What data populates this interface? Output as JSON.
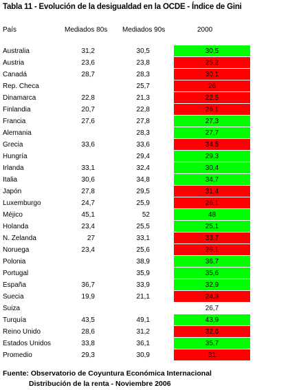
{
  "title": "Tabla 11 - Evolución de la desigualdad en la OCDE - Índice de Gini",
  "columns": {
    "pais": "País",
    "m80": "Mediados 80s",
    "m90": "Mediados 90s",
    "y2000": "2000"
  },
  "colors": {
    "green": "#00ff00",
    "red": "#ff0000",
    "none": "#ffffff"
  },
  "rows": [
    {
      "pais": "Australia",
      "m80": "31,2",
      "m90": "30,5",
      "y2000": "30,5",
      "color": "green"
    },
    {
      "pais": "Austria",
      "m80": "23,6",
      "m90": "23,8",
      "y2000": "25,2",
      "color": "red"
    },
    {
      "pais": "Canadá",
      "m80": "28,7",
      "m90": "28,3",
      "y2000": "30,1",
      "color": "red"
    },
    {
      "pais": "Rep. Checa",
      "m80": "",
      "m90": "25,7",
      "y2000": "26",
      "color": "red"
    },
    {
      "pais": "Dinamarca",
      "m80": "22,8",
      "m90": "21,3",
      "y2000": "22,5",
      "color": "red"
    },
    {
      "pais": "Finlandia",
      "m80": "20,7",
      "m90": "22,8",
      "y2000": "26,1",
      "color": "red"
    },
    {
      "pais": "Francia",
      "m80": "27,6",
      "m90": "27,8",
      "y2000": "27,3",
      "color": "green"
    },
    {
      "pais": "Alemania",
      "m80": "",
      "m90": "28,3",
      "y2000": "27,7",
      "color": "green"
    },
    {
      "pais": "Grecia",
      "m80": "33,6",
      "m90": "33,6",
      "y2000": "34,5",
      "color": "red"
    },
    {
      "pais": "Hungría",
      "m80": "",
      "m90": "29,4",
      "y2000": "29,3",
      "color": "green"
    },
    {
      "pais": "Irlanda",
      "m80": "33,1",
      "m90": "32,4",
      "y2000": "30,4",
      "color": "green"
    },
    {
      "pais": "Italia",
      "m80": "30,6",
      "m90": "34,8",
      "y2000": "34,7",
      "color": "green"
    },
    {
      "pais": "Japón",
      "m80": "27,8",
      "m90": "29,5",
      "y2000": "31,4",
      "color": "red"
    },
    {
      "pais": "Luxemburgo",
      "m80": "24,7",
      "m90": "25,9",
      "y2000": "26,1",
      "color": "red"
    },
    {
      "pais": "Méjico",
      "m80": "45,1",
      "m90": "52",
      "y2000": "48",
      "color": "green"
    },
    {
      "pais": "Holanda",
      "m80": "23,4",
      "m90": "25,5",
      "y2000": "25,1",
      "color": "green"
    },
    {
      "pais": "N. Zelanda",
      "m80": "27",
      "m90": "33,1",
      "y2000": "33,7",
      "color": "red"
    },
    {
      "pais": "Noruega",
      "m80": "23,4",
      "m90": "25,6",
      "y2000": "26,1",
      "color": "red"
    },
    {
      "pais": "Polonia",
      "m80": "",
      "m90": "38,9",
      "y2000": "36,7",
      "color": "green"
    },
    {
      "pais": "Portugal",
      "m80": "",
      "m90": "35,9",
      "y2000": "35,6",
      "color": "green"
    },
    {
      "pais": "España",
      "m80": "36,7",
      "m90": "33,9",
      "y2000": "32,9",
      "color": "green"
    },
    {
      "pais": "Suecia",
      "m80": "19,9",
      "m90": "21,1",
      "y2000": "24,3",
      "color": "red"
    },
    {
      "pais": "Suiza",
      "m80": "",
      "m90": "",
      "y2000": "26,7",
      "color": "none"
    },
    {
      "pais": "Turquía",
      "m80": "43,5",
      "m90": "49,1",
      "y2000": "43,9",
      "color": "green"
    },
    {
      "pais": "Reino Unido",
      "m80": "28,6",
      "m90": "31,2",
      "y2000": "32,6",
      "color": "red"
    },
    {
      "pais": "Estados Unidos",
      "m80": "33,8",
      "m90": "36,1",
      "y2000": "35,7",
      "color": "green"
    },
    {
      "pais": "Promedio",
      "m80": "29,3",
      "m90": "30,9",
      "y2000": "31",
      "color": "red"
    }
  ],
  "source": {
    "line1": "Fuente: Observatorio de Coyuntura Económica Internacional",
    "line2": "Distribución de la renta - Noviembre 2006"
  }
}
